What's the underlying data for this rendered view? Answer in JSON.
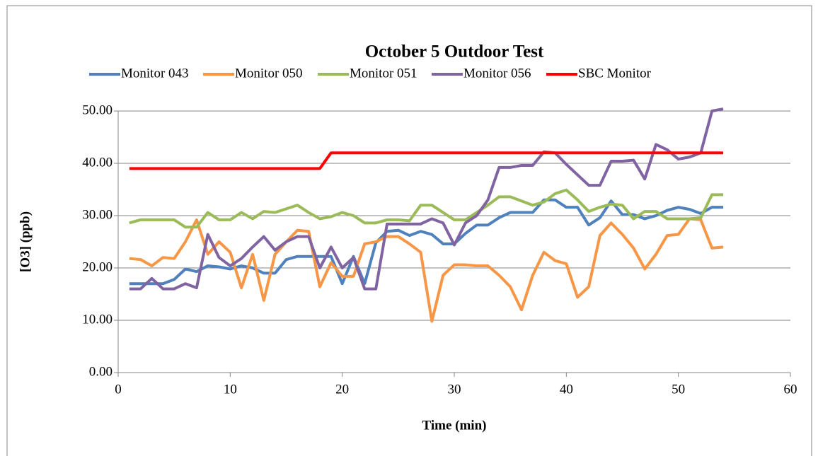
{
  "chart_data": {
    "type": "line",
    "title": "October 5 Outdoor Test",
    "x_label": "Time (min)",
    "y_label": "[O3] (ppb)",
    "x": [
      1,
      2,
      3,
      4,
      5,
      6,
      7,
      8,
      9,
      10,
      11,
      12,
      13,
      14,
      15,
      16,
      17,
      18,
      19,
      20,
      21,
      22,
      23,
      24,
      25,
      26,
      27,
      28,
      29,
      30,
      31,
      32,
      33,
      34,
      35,
      36,
      37,
      38,
      39,
      40,
      41,
      42,
      43,
      44,
      45,
      46,
      47,
      48,
      49,
      50,
      51,
      52,
      53,
      54
    ],
    "series": [
      {
        "name": "Monitor 043",
        "color": "#4f81bd",
        "values": [
          17,
          17,
          17,
          17,
          17.8,
          19.8,
          19.3,
          20.4,
          20.2,
          19.8,
          20.4,
          20,
          19,
          19,
          21.6,
          22.2,
          22.2,
          22.2,
          22.2,
          17,
          22.2,
          17,
          24.8,
          27,
          27.2,
          26.2,
          27,
          26.4,
          24.6,
          24.6,
          26.6,
          28.2,
          28.2,
          29.6,
          30.6,
          30.6,
          30.6,
          33,
          33,
          31.6,
          31.6,
          28.2,
          29.6,
          32.8,
          30.2,
          30.2,
          29.4,
          30,
          31,
          31.6,
          31.2,
          30.4,
          31.6,
          31.6
        ]
      },
      {
        "name": "Monitor 050",
        "color": "#f79646",
        "values": [
          21.8,
          21.6,
          20.4,
          22,
          21.8,
          25,
          29.2,
          22.6,
          25,
          23,
          16.2,
          22.6,
          13.8,
          22.6,
          25,
          27.2,
          27,
          16.4,
          21,
          18.4,
          18.4,
          24.6,
          25,
          26,
          26,
          24.6,
          23,
          9.8,
          18.6,
          20.6,
          20.6,
          20.4,
          20.4,
          18.6,
          16.4,
          12,
          18.6,
          23,
          21.4,
          20.8,
          14.4,
          16.4,
          26.2,
          28.6,
          26.4,
          23.8,
          19.8,
          22.6,
          26.2,
          26.4,
          29.4,
          29.2,
          23.8,
          24
        ]
      },
      {
        "name": "Monitor 051",
        "color": "#9bbb59",
        "values": [
          28.6,
          29.2,
          29.2,
          29.2,
          29.2,
          27.8,
          27.8,
          30.6,
          29.2,
          29.2,
          30.6,
          29.4,
          30.8,
          30.6,
          31.3,
          32,
          30.6,
          29.4,
          29.8,
          30.6,
          30,
          28.6,
          28.6,
          29.2,
          29.2,
          29,
          32,
          32,
          30.6,
          29.2,
          29.2,
          30.6,
          32,
          33.6,
          33.6,
          32.8,
          32,
          32.6,
          34.2,
          34.9,
          33,
          30.8,
          31.6,
          32.2,
          32,
          29.4,
          30.8,
          30.8,
          29.4,
          29.4,
          29.4,
          29.6,
          34,
          34
        ]
      },
      {
        "name": "Monitor 056",
        "color": "#8064a2",
        "values": [
          16,
          16,
          18,
          16,
          16,
          17,
          16.2,
          26.4,
          22,
          20.4,
          21.8,
          24,
          26,
          23.4,
          25,
          26,
          26,
          20,
          24,
          20,
          22,
          16,
          16,
          28.4,
          28.4,
          28.4,
          28.4,
          29.4,
          28.6,
          24.4,
          28.6,
          30,
          33,
          39.2,
          39.2,
          39.6,
          39.6,
          42.2,
          42,
          39.8,
          37.8,
          35.8,
          35.8,
          40.4,
          40.4,
          40.6,
          37,
          43.6,
          42.6,
          40.8,
          41.2,
          42,
          50,
          50.4
        ]
      },
      {
        "name": "SBC Monitor",
        "color": "#ff0000",
        "values": [
          39,
          39,
          39,
          39,
          39,
          39,
          39,
          39,
          39,
          39,
          39,
          39,
          39,
          39,
          39,
          39,
          39,
          39,
          42,
          42,
          42,
          42,
          42,
          42,
          42,
          42,
          42,
          42,
          42,
          42,
          42,
          42,
          42,
          42,
          42,
          42,
          42,
          42,
          42,
          42,
          42,
          42,
          42,
          42,
          42,
          42,
          42,
          42,
          42,
          42,
          42,
          42,
          42,
          42
        ]
      }
    ],
    "xlim": [
      0,
      60
    ],
    "xticks": [
      0,
      10,
      20,
      30,
      40,
      50,
      60
    ],
    "ylim": [
      0,
      50
    ],
    "yticks": [
      {
        "value": 0,
        "label": "0.00"
      },
      {
        "value": 10,
        "label": "10.00"
      },
      {
        "value": 20,
        "label": "20.00"
      },
      {
        "value": 30,
        "label": "30.00"
      },
      {
        "value": 40,
        "label": "40.00"
      },
      {
        "value": 50,
        "label": "50.00"
      }
    ],
    "grid": true,
    "legend": "top"
  }
}
